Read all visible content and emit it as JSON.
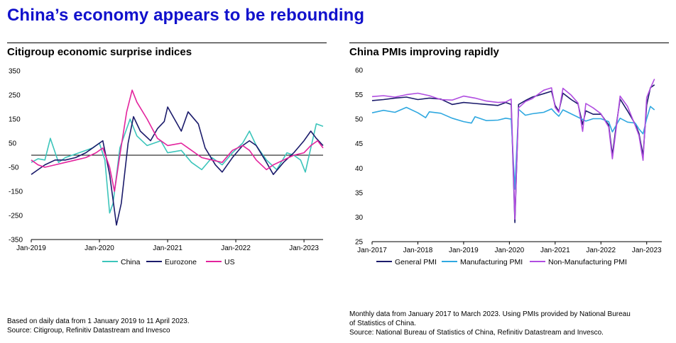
{
  "page": {
    "title": "China’s economy appears to be rebounding",
    "left_note": [
      "Based on daily data from 1 January 2019 to 11 April 2023.",
      "Source: Citigroup, Refinitiv Datastream and Invesco"
    ],
    "right_note": [
      "Monthly data from January 2017 to March 2023. Using PMIs provided by National Bureau",
      "of Statistics of China.",
      "Source: National Bureau of Statistics of China, Refinitiv Datastream and Invesco."
    ]
  },
  "chart_data": [
    {
      "type": "line",
      "title": "Citigroup economic surprise indices",
      "xlabel": "",
      "ylabel": "",
      "x_ticks": [
        "Jan-2019",
        "Jan-2020",
        "Jan-2021",
        "Jan-2022",
        "Jan-2023"
      ],
      "y_ticks": [
        350,
        250,
        150,
        50,
        -50,
        -150,
        -250,
        -350
      ],
      "ylim": [
        -350,
        350
      ],
      "xlim": [
        2019.0,
        2023.28
      ],
      "zero_line": true,
      "legend": "bottom",
      "series": [
        {
          "name": "China",
          "color": "#3cc5bb",
          "points": [
            [
              2019.0,
              -30
            ],
            [
              2019.1,
              -15
            ],
            [
              2019.2,
              -20
            ],
            [
              2019.28,
              70
            ],
            [
              2019.4,
              -30
            ],
            [
              2019.5,
              -10
            ],
            [
              2019.6,
              0
            ],
            [
              2019.7,
              10
            ],
            [
              2019.8,
              20
            ],
            [
              2019.9,
              30
            ],
            [
              2020.0,
              50
            ],
            [
              2020.08,
              -20
            ],
            [
              2020.15,
              -240
            ],
            [
              2020.2,
              -200
            ],
            [
              2020.3,
              30
            ],
            [
              2020.45,
              150
            ],
            [
              2020.55,
              80
            ],
            [
              2020.7,
              40
            ],
            [
              2020.9,
              60
            ],
            [
              2021.0,
              10
            ],
            [
              2021.2,
              20
            ],
            [
              2021.35,
              -30
            ],
            [
              2021.5,
              -60
            ],
            [
              2021.65,
              -10
            ],
            [
              2021.8,
              -40
            ],
            [
              2021.95,
              10
            ],
            [
              2022.1,
              50
            ],
            [
              2022.2,
              100
            ],
            [
              2022.3,
              40
            ],
            [
              2022.45,
              -20
            ],
            [
              2022.6,
              -60
            ],
            [
              2022.75,
              10
            ],
            [
              2022.85,
              0
            ],
            [
              2022.95,
              -20
            ],
            [
              2023.02,
              -70
            ],
            [
              2023.1,
              30
            ],
            [
              2023.18,
              130
            ],
            [
              2023.28,
              120
            ]
          ]
        },
        {
          "name": "Eurozone",
          "color": "#1b1b6b",
          "points": [
            [
              2019.0,
              -80
            ],
            [
              2019.1,
              -60
            ],
            [
              2019.2,
              -40
            ],
            [
              2019.35,
              -20
            ],
            [
              2019.5,
              -20
            ],
            [
              2019.65,
              -10
            ],
            [
              2019.8,
              10
            ],
            [
              2019.95,
              40
            ],
            [
              2020.05,
              60
            ],
            [
              2020.15,
              -80
            ],
            [
              2020.25,
              -290
            ],
            [
              2020.32,
              -200
            ],
            [
              2020.42,
              50
            ],
            [
              2020.5,
              160
            ],
            [
              2020.6,
              100
            ],
            [
              2020.75,
              60
            ],
            [
              2020.85,
              110
            ],
            [
              2020.95,
              140
            ],
            [
              2021.0,
              200
            ],
            [
              2021.1,
              150
            ],
            [
              2021.2,
              100
            ],
            [
              2021.3,
              180
            ],
            [
              2021.45,
              130
            ],
            [
              2021.55,
              30
            ],
            [
              2021.7,
              -40
            ],
            [
              2021.8,
              -70
            ],
            [
              2021.95,
              -10
            ],
            [
              2022.1,
              40
            ],
            [
              2022.2,
              60
            ],
            [
              2022.3,
              40
            ],
            [
              2022.45,
              -30
            ],
            [
              2022.55,
              -80
            ],
            [
              2022.7,
              -30
            ],
            [
              2022.85,
              10
            ],
            [
              2023.0,
              60
            ],
            [
              2023.1,
              100
            ],
            [
              2023.18,
              70
            ],
            [
              2023.28,
              40
            ]
          ]
        },
        {
          "name": "US",
          "color": "#e3239d",
          "points": [
            [
              2019.0,
              -20
            ],
            [
              2019.1,
              -40
            ],
            [
              2019.2,
              -50
            ],
            [
              2019.35,
              -40
            ],
            [
              2019.5,
              -30
            ],
            [
              2019.65,
              -20
            ],
            [
              2019.8,
              -10
            ],
            [
              2019.95,
              10
            ],
            [
              2020.05,
              30
            ],
            [
              2020.15,
              -50
            ],
            [
              2020.22,
              -150
            ],
            [
              2020.3,
              0
            ],
            [
              2020.4,
              180
            ],
            [
              2020.48,
              270
            ],
            [
              2020.55,
              220
            ],
            [
              2020.7,
              150
            ],
            [
              2020.85,
              70
            ],
            [
              2021.0,
              40
            ],
            [
              2021.2,
              50
            ],
            [
              2021.35,
              20
            ],
            [
              2021.5,
              -10
            ],
            [
              2021.65,
              -20
            ],
            [
              2021.8,
              -30
            ],
            [
              2021.95,
              20
            ],
            [
              2022.1,
              40
            ],
            [
              2022.2,
              20
            ],
            [
              2022.3,
              -20
            ],
            [
              2022.45,
              -60
            ],
            [
              2022.55,
              -40
            ],
            [
              2022.7,
              -20
            ],
            [
              2022.85,
              0
            ],
            [
              2023.0,
              10
            ],
            [
              2023.1,
              40
            ],
            [
              2023.2,
              60
            ],
            [
              2023.28,
              30
            ]
          ]
        }
      ]
    },
    {
      "type": "line",
      "title": "China PMIs improving rapidly",
      "xlabel": "",
      "ylabel": "",
      "x_ticks": [
        "Jan-2017",
        "Jan-2018",
        "Jan-2019",
        "Jan-2020",
        "Jan-2021",
        "Jan-2022",
        "Jan-2023"
      ],
      "y_ticks": [
        60,
        55,
        50,
        45,
        40,
        35,
        30,
        25
      ],
      "ylim": [
        25,
        60
      ],
      "xlim": [
        2017.0,
        2023.33
      ],
      "legend": "bottom",
      "series": [
        {
          "name": "General PMI",
          "color": "#1b1b6b",
          "points": [
            [
              2017.0,
              53.8
            ],
            [
              2017.25,
              54.0
            ],
            [
              2017.5,
              54.3
            ],
            [
              2017.75,
              54.5
            ],
            [
              2018.0,
              54.0
            ],
            [
              2018.25,
              54.3
            ],
            [
              2018.5,
              54.1
            ],
            [
              2018.75,
              53.0
            ],
            [
              2019.0,
              53.4
            ],
            [
              2019.25,
              53.2
            ],
            [
              2019.5,
              53.0
            ],
            [
              2019.75,
              52.8
            ],
            [
              2019.92,
              53.4
            ],
            [
              2020.04,
              53.0
            ],
            [
              2020.12,
              28.9
            ],
            [
              2020.2,
              53.0
            ],
            [
              2020.35,
              53.8
            ],
            [
              2020.5,
              54.5
            ],
            [
              2020.75,
              55.2
            ],
            [
              2020.92,
              55.7
            ],
            [
              2021.0,
              52.8
            ],
            [
              2021.08,
              51.6
            ],
            [
              2021.17,
              55.3
            ],
            [
              2021.35,
              54.0
            ],
            [
              2021.5,
              53.1
            ],
            [
              2021.6,
              48.9
            ],
            [
              2021.67,
              51.7
            ],
            [
              2021.83,
              51.0
            ],
            [
              2022.0,
              51.0
            ],
            [
              2022.17,
              48.8
            ],
            [
              2022.25,
              42.7
            ],
            [
              2022.33,
              48.4
            ],
            [
              2022.42,
              54.1
            ],
            [
              2022.58,
              51.7
            ],
            [
              2022.75,
              49.0
            ],
            [
              2022.83,
              47.1
            ],
            [
              2022.92,
              42.6
            ],
            [
              2023.0,
              52.9
            ],
            [
              2023.08,
              56.4
            ],
            [
              2023.17,
              57.0
            ]
          ]
        },
        {
          "name": "Manufacturing PMI",
          "color": "#2fa8e0",
          "points": [
            [
              2017.0,
              51.3
            ],
            [
              2017.25,
              51.8
            ],
            [
              2017.5,
              51.4
            ],
            [
              2017.75,
              52.4
            ],
            [
              2018.0,
              51.3
            ],
            [
              2018.17,
              50.3
            ],
            [
              2018.25,
              51.5
            ],
            [
              2018.5,
              51.2
            ],
            [
              2018.75,
              50.2
            ],
            [
              2019.0,
              49.5
            ],
            [
              2019.17,
              49.2
            ],
            [
              2019.25,
              50.5
            ],
            [
              2019.5,
              49.7
            ],
            [
              2019.75,
              49.8
            ],
            [
              2019.92,
              50.2
            ],
            [
              2020.04,
              50.0
            ],
            [
              2020.12,
              35.7
            ],
            [
              2020.2,
              52.0
            ],
            [
              2020.35,
              50.8
            ],
            [
              2020.5,
              51.1
            ],
            [
              2020.75,
              51.4
            ],
            [
              2020.92,
              52.1
            ],
            [
              2021.0,
              51.3
            ],
            [
              2021.08,
              50.6
            ],
            [
              2021.17,
              51.9
            ],
            [
              2021.5,
              50.4
            ],
            [
              2021.67,
              49.6
            ],
            [
              2021.83,
              50.1
            ],
            [
              2022.0,
              50.1
            ],
            [
              2022.17,
              49.5
            ],
            [
              2022.25,
              47.4
            ],
            [
              2022.42,
              50.2
            ],
            [
              2022.58,
              49.4
            ],
            [
              2022.75,
              49.2
            ],
            [
              2022.83,
              48.0
            ],
            [
              2022.92,
              47.0
            ],
            [
              2023.0,
              50.1
            ],
            [
              2023.08,
              52.6
            ],
            [
              2023.17,
              51.9
            ]
          ]
        },
        {
          "name": "Non-Manufacturing PMI",
          "color": "#b04de0",
          "points": [
            [
              2017.0,
              54.6
            ],
            [
              2017.25,
              54.8
            ],
            [
              2017.5,
              54.5
            ],
            [
              2017.75,
              55.0
            ],
            [
              2018.0,
              55.3
            ],
            [
              2018.25,
              54.8
            ],
            [
              2018.5,
              54.0
            ],
            [
              2018.75,
              53.9
            ],
            [
              2019.0,
              54.7
            ],
            [
              2019.25,
              54.3
            ],
            [
              2019.5,
              53.7
            ],
            [
              2019.75,
              53.4
            ],
            [
              2019.92,
              53.5
            ],
            [
              2020.04,
              54.1
            ],
            [
              2020.12,
              29.6
            ],
            [
              2020.2,
              52.3
            ],
            [
              2020.35,
              53.6
            ],
            [
              2020.5,
              54.2
            ],
            [
              2020.75,
              55.9
            ],
            [
              2020.92,
              56.4
            ],
            [
              2021.0,
              52.4
            ],
            [
              2021.08,
              51.4
            ],
            [
              2021.17,
              56.3
            ],
            [
              2021.35,
              54.9
            ],
            [
              2021.5,
              53.3
            ],
            [
              2021.6,
              47.5
            ],
            [
              2021.67,
              53.2
            ],
            [
              2021.83,
              52.3
            ],
            [
              2022.0,
              51.1
            ],
            [
              2022.17,
              48.4
            ],
            [
              2022.25,
              41.9
            ],
            [
              2022.33,
              47.8
            ],
            [
              2022.42,
              54.7
            ],
            [
              2022.58,
              52.6
            ],
            [
              2022.75,
              48.7
            ],
            [
              2022.83,
              46.7
            ],
            [
              2022.92,
              41.6
            ],
            [
              2023.0,
              54.4
            ],
            [
              2023.08,
              56.3
            ],
            [
              2023.17,
              58.2
            ]
          ]
        }
      ]
    }
  ]
}
